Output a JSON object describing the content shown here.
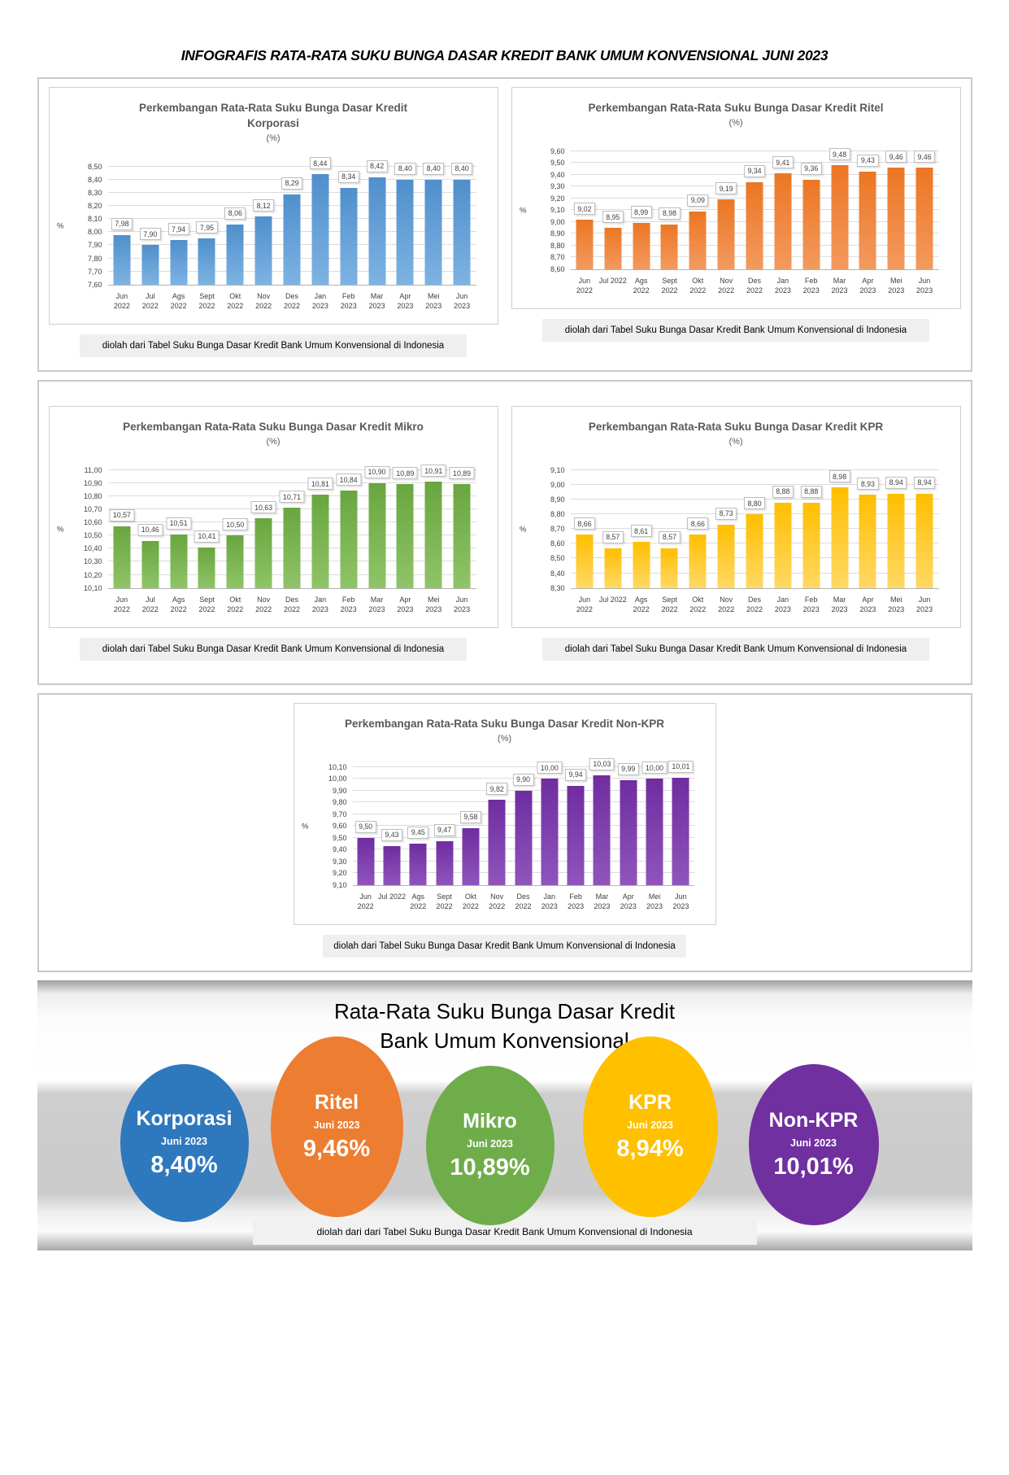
{
  "page_title": "INFOGRAFIS RATA-RATA SUKU BUNGA DASAR KREDIT BANK UMUM KONVENSIONAL JUNI 2023",
  "chart_data": [
    {
      "type": "bar",
      "title": "Perkembangan Rata-Rata Suku Bunga Dasar Kredit Korporasi",
      "subtitle": "(%)",
      "xlabel": "",
      "ylabel": "%",
      "categories": [
        [
          "Jun",
          "2022"
        ],
        [
          "Jul",
          "2022"
        ],
        [
          "Ags",
          "2022"
        ],
        [
          "Sept",
          "2022"
        ],
        [
          "Okt",
          "2022"
        ],
        [
          "Nov",
          "2022"
        ],
        [
          "Des",
          "2022"
        ],
        [
          "Jan",
          "2023"
        ],
        [
          "Feb",
          "2023"
        ],
        [
          "Mar",
          "2023"
        ],
        [
          "Apr",
          "2023"
        ],
        [
          "Mei",
          "2023"
        ],
        [
          "Jun",
          "2023"
        ]
      ],
      "values": [
        7.98,
        7.9,
        7.94,
        7.95,
        8.06,
        8.12,
        8.29,
        8.44,
        8.34,
        8.42,
        8.4,
        8.4,
        8.4
      ],
      "ylim": [
        7.6,
        8.5
      ],
      "ystep": 0.1,
      "grid": true,
      "legend": "none",
      "bar_color": "#4F8FCC",
      "bar_color_light": "#7EB3E3",
      "caption": "diolah dari Tabel  Suku Bunga Dasar Kredit Bank Umum Konvensional di Indonesia"
    },
    {
      "type": "bar",
      "title": "Perkembangan Rata-Rata Suku Bunga Dasar Kredit Ritel",
      "subtitle": "(%)",
      "xlabel": "",
      "ylabel": "%",
      "categories": [
        [
          "Jun",
          "2022"
        ],
        [
          "Jul 2022"
        ],
        [
          "Ags",
          "2022"
        ],
        [
          "Sept",
          "2022"
        ],
        [
          "Okt",
          "2022"
        ],
        [
          "Nov",
          "2022"
        ],
        [
          "Des",
          "2022"
        ],
        [
          "Jan",
          "2023"
        ],
        [
          "Feb",
          "2023"
        ],
        [
          "Mar",
          "2023"
        ],
        [
          "Apr",
          "2023"
        ],
        [
          "Mei",
          "2023"
        ],
        [
          "Jun",
          "2023"
        ]
      ],
      "values": [
        9.02,
        8.95,
        8.99,
        8.98,
        9.09,
        9.19,
        9.34,
        9.41,
        9.36,
        9.48,
        9.43,
        9.46,
        9.46
      ],
      "ylim": [
        8.6,
        9.6
      ],
      "ystep": 0.1,
      "grid": true,
      "legend": "none",
      "bar_color": "#EC7623",
      "bar_color_light": "#F39A5F",
      "caption": "diolah dari Tabel  Suku Bunga Dasar Kredit Bank Umum Konvensional di Indonesia"
    },
    {
      "type": "bar",
      "title": "Perkembangan Rata-Rata Suku Bunga Dasar Kredit Mikro",
      "subtitle": "(%)",
      "xlabel": "",
      "ylabel": "%",
      "categories": [
        [
          "Jun",
          "2022"
        ],
        [
          "Jul",
          "2022"
        ],
        [
          "Ags",
          "2022"
        ],
        [
          "Sept",
          "2022"
        ],
        [
          "Okt",
          "2022"
        ],
        [
          "Nov",
          "2022"
        ],
        [
          "Des",
          "2022"
        ],
        [
          "Jan",
          "2023"
        ],
        [
          "Feb",
          "2023"
        ],
        [
          "Mar",
          "2023"
        ],
        [
          "Apr",
          "2023"
        ],
        [
          "Mei",
          "2023"
        ],
        [
          "Jun",
          "2023"
        ]
      ],
      "values": [
        10.57,
        10.46,
        10.51,
        10.41,
        10.5,
        10.63,
        10.71,
        10.81,
        10.84,
        10.9,
        10.89,
        10.91,
        10.89
      ],
      "ylim": [
        10.1,
        11.0
      ],
      "ystep": 0.1,
      "grid": true,
      "legend": "none",
      "bar_color": "#69A63F",
      "bar_color_light": "#8FC468",
      "caption": "diolah dari Tabel  Suku Bunga Dasar Kredit Bank Umum Konvensional di Indonesia"
    },
    {
      "type": "bar",
      "title": "Perkembangan Rata-Rata Suku Bunga Dasar Kredit KPR",
      "subtitle": "(%)",
      "xlabel": "",
      "ylabel": "%",
      "categories": [
        [
          "Jun",
          "2022"
        ],
        [
          "Jul 2022"
        ],
        [
          "Ags",
          "2022"
        ],
        [
          "Sept",
          "2022"
        ],
        [
          "Okt",
          "2022"
        ],
        [
          "Nov",
          "2022"
        ],
        [
          "Des",
          "2022"
        ],
        [
          "Jan",
          "2023"
        ],
        [
          "Feb",
          "2023"
        ],
        [
          "Mar",
          "2023"
        ],
        [
          "Apr",
          "2023"
        ],
        [
          "Mei",
          "2023"
        ],
        [
          "Jun",
          "2023"
        ]
      ],
      "values": [
        8.66,
        8.57,
        8.61,
        8.57,
        8.66,
        8.73,
        8.8,
        8.88,
        8.88,
        8.98,
        8.93,
        8.94,
        8.94
      ],
      "ylim": [
        8.3,
        9.1
      ],
      "ystep": 0.1,
      "grid": true,
      "legend": "none",
      "bar_color": "#FFBE00",
      "bar_color_light": "#FFD966",
      "caption": "diolah dari Tabel  Suku Bunga Dasar Kredit Bank Umum Konvensional di Indonesia"
    },
    {
      "type": "bar",
      "title": "Perkembangan Rata-Rata Suku Bunga Dasar Kredit Non-KPR",
      "subtitle": "(%)",
      "xlabel": "",
      "ylabel": "%",
      "categories": [
        [
          "Jun",
          "2022"
        ],
        [
          "Jul 2022"
        ],
        [
          "Ags",
          "2022"
        ],
        [
          "Sept",
          "2022"
        ],
        [
          "Okt",
          "2022"
        ],
        [
          "Nov",
          "2022"
        ],
        [
          "Des",
          "2022"
        ],
        [
          "Jan",
          "2023"
        ],
        [
          "Feb",
          "2023"
        ],
        [
          "Mar",
          "2023"
        ],
        [
          "Apr",
          "2023"
        ],
        [
          "Mei",
          "2023"
        ],
        [
          "Jun",
          "2023"
        ]
      ],
      "values": [
        9.5,
        9.43,
        9.45,
        9.47,
        9.58,
        9.82,
        9.9,
        10.0,
        9.94,
        10.03,
        9.99,
        10.0,
        10.01
      ],
      "ylim": [
        9.1,
        10.1
      ],
      "ystep": 0.1,
      "grid": true,
      "legend": "none",
      "bar_color": "#6F2DA0",
      "bar_color_light": "#8F55BC",
      "caption": "diolah dari Tabel  Suku Bunga Dasar Kredit Bank Umum Konvensional di Indonesia"
    }
  ],
  "summary": {
    "title_line1": "Rata-Rata Suku Bunga Dasar Kredit",
    "title_line2": "Bank Umum Konvensional",
    "caption": "diolah dari dari Tabel  Suku Bunga Dasar Kredit Bank Umum Konvensional di Indonesia",
    "items": [
      {
        "label": "Korporasi",
        "period": "Juni 2023",
        "value": "8,40%",
        "color": "#2E78BE"
      },
      {
        "label": "Ritel",
        "period": "Juni 2023",
        "value": "9,46%",
        "color": "#ED7D31"
      },
      {
        "label": "Mikro",
        "period": "Juni 2023",
        "value": "10,89%",
        "color": "#6FAD4B"
      },
      {
        "label": "KPR",
        "period": "Juni 2023",
        "value": "8,94%",
        "color": "#FFC000"
      },
      {
        "label": "Non-KPR",
        "period": "Juni 2023",
        "value": "10,01%",
        "color": "#7030A0"
      }
    ]
  }
}
